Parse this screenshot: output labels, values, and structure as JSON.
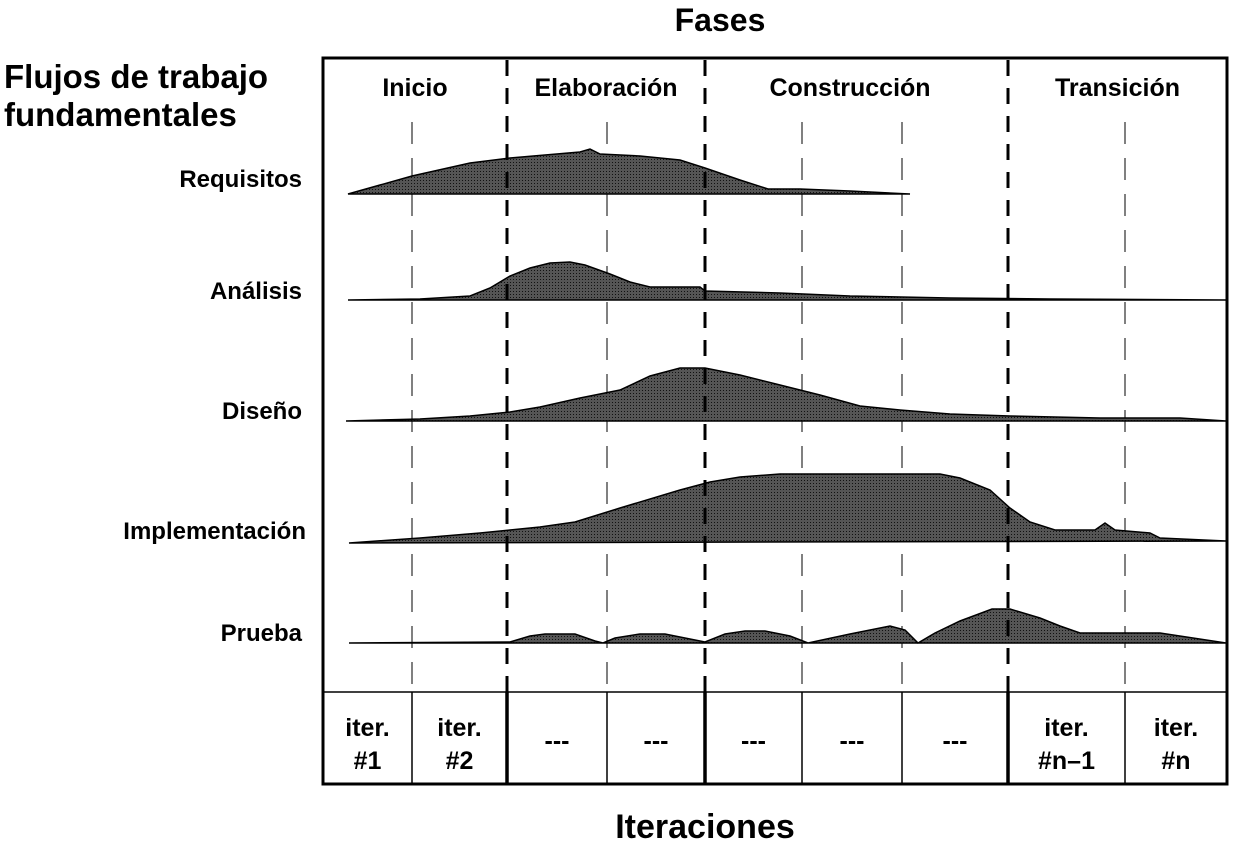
{
  "title": "Fases",
  "bottom_label": "Iteraciones",
  "left_title_line1": "Flujos de trabajo",
  "left_title_line2": "fundamentales",
  "phases": [
    "Inicio",
    "Elaboración",
    "Construcción",
    "Transición"
  ],
  "workflows": [
    "Requisitos",
    "Análisis",
    "Diseño",
    "Implementación",
    "Prueba"
  ],
  "iterations": [
    {
      "line1": "iter.",
      "line2": "#1"
    },
    {
      "line1": "iter.",
      "line2": "#2"
    },
    {
      "line1": "---",
      "line2": ""
    },
    {
      "line1": "---",
      "line2": ""
    },
    {
      "line1": "---",
      "line2": ""
    },
    {
      "line1": "---",
      "line2": ""
    },
    {
      "line1": "---",
      "line2": ""
    },
    {
      "line1": "iter.",
      "line2": "#n–1"
    },
    {
      "line1": "iter.",
      "line2": "#n"
    }
  ],
  "colors": {
    "fill": "#3a3a3a",
    "stroke": "#000000"
  }
}
